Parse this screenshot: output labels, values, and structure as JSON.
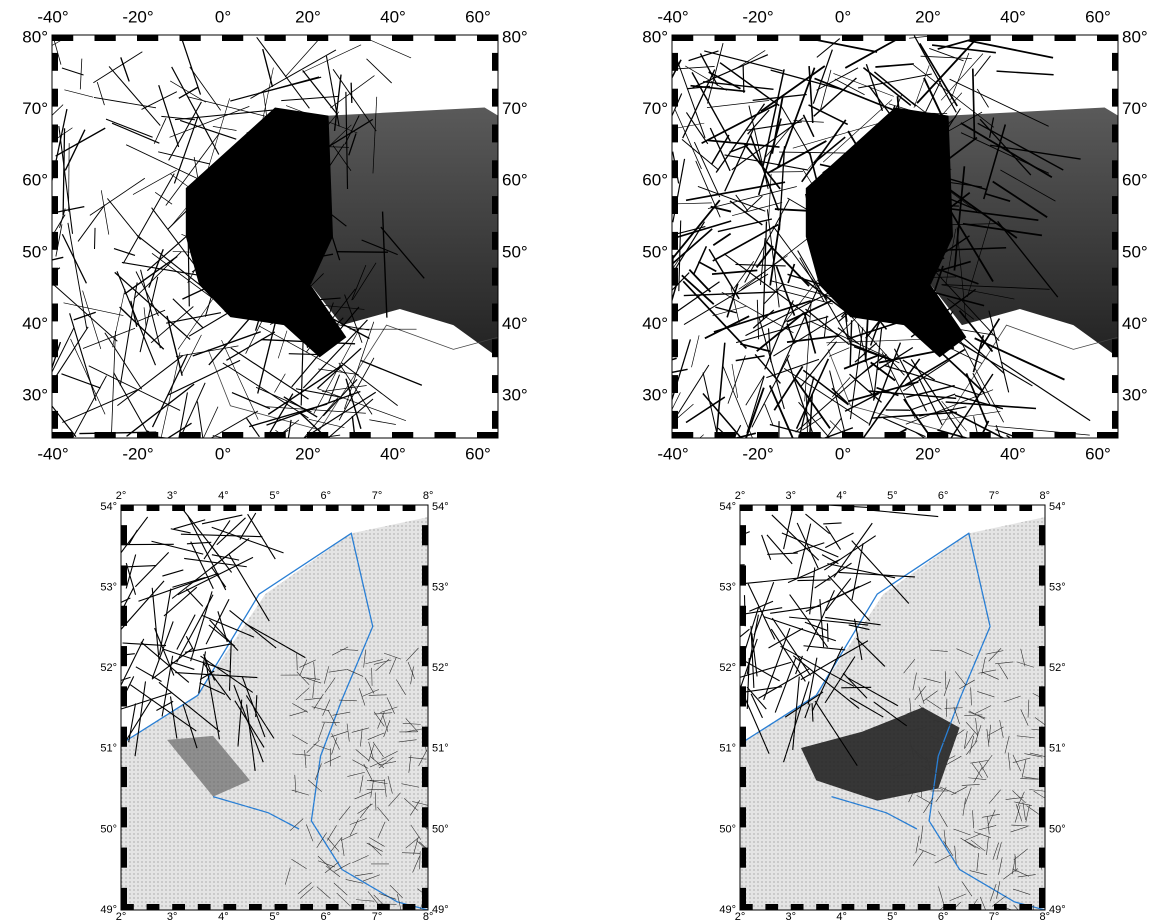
{
  "panels": [
    {
      "x_labels": [
        "-40°",
        "-20°",
        "0°",
        "20°",
        "40°",
        "60°"
      ],
      "y_labels": [
        "80°",
        "70°",
        "60°",
        "50°",
        "40°",
        "30°"
      ]
    },
    {
      "x_labels": [
        "-40°",
        "-20°",
        "0°",
        "20°",
        "40°",
        "60°"
      ],
      "y_labels": [
        "80°",
        "70°",
        "60°",
        "50°",
        "40°",
        "30°"
      ]
    },
    {
      "x_labels": [
        "2°",
        "3°",
        "4°",
        "5°",
        "6°",
        "7°",
        "8°"
      ],
      "y_labels": [
        "54°",
        "53°",
        "52°",
        "51°",
        "50°",
        "49°"
      ]
    },
    {
      "x_labels": [
        "2°",
        "3°",
        "4°",
        "5°",
        "6°",
        "7°",
        "8°"
      ],
      "y_labels": [
        "54°",
        "53°",
        "52°",
        "51°",
        "50°",
        "49°"
      ]
    }
  ]
}
